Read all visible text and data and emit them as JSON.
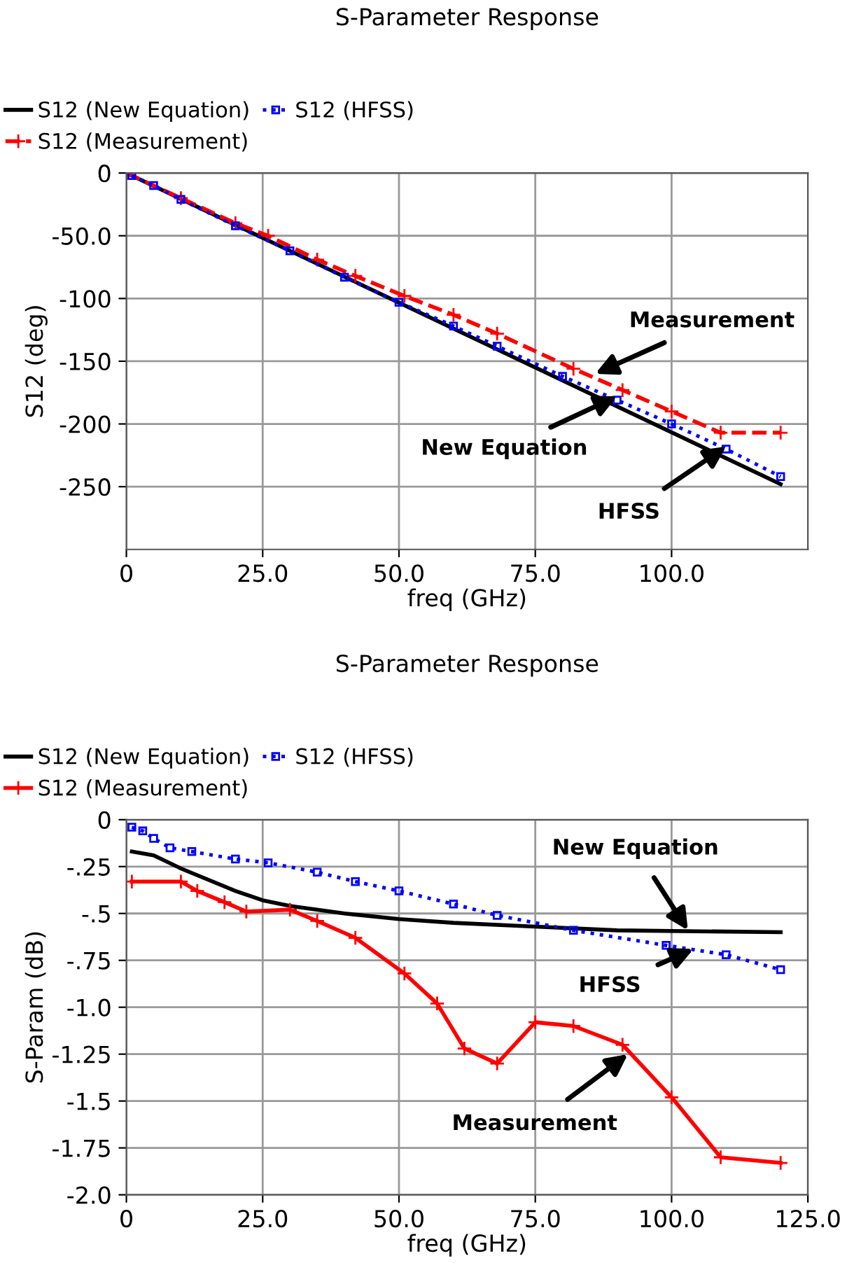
{
  "chart_data": [
    {
      "type": "line",
      "title": "S-Parameter Response",
      "xlabel": "freq (GHz)",
      "ylabel": "S12 (deg)",
      "xlim": [
        0,
        125
      ],
      "xticks": [
        {
          "value": 0,
          "label": "0"
        },
        {
          "value": 25,
          "label": "25.0"
        },
        {
          "value": 50,
          "label": "50.0"
        },
        {
          "value": 75,
          "label": "75.0"
        },
        {
          "value": 100,
          "label": "100.0"
        }
      ],
      "ylim": [
        -300,
        0
      ],
      "yticks": [
        {
          "value": 0,
          "label": "0"
        },
        {
          "value": -50,
          "label": "-50.0"
        },
        {
          "value": -100,
          "label": "-100"
        },
        {
          "value": -150,
          "label": "-150"
        },
        {
          "value": -200,
          "label": "-200"
        },
        {
          "value": -250,
          "label": "-250"
        }
      ],
      "grid": true,
      "legend": "top",
      "series": [
        {
          "name": "S12 (New Equation)",
          "color": "#000000",
          "marker": "none",
          "line_style": "solid",
          "x": [
            0,
            120
          ],
          "values": [
            0,
            -248
          ]
        },
        {
          "name": "S12 (Measurement)",
          "color": "#ff0000",
          "marker": "cross",
          "line_style": "dashed",
          "x": [
            0,
            10,
            20,
            26,
            35,
            42,
            51,
            60,
            68,
            82,
            91,
            100,
            109,
            120
          ],
          "values": [
            0,
            -20,
            -40,
            -50,
            -69,
            -82,
            -98,
            -113,
            -128,
            -156,
            -173,
            -190,
            -207,
            -207
          ]
        },
        {
          "name": "S12 (HFSS)",
          "color": "#0000ff",
          "marker": "square",
          "line_style": "dotted",
          "x": [
            1,
            5,
            10,
            20,
            30,
            40,
            50,
            60,
            68,
            80,
            90,
            100,
            110,
            120
          ],
          "values": [
            -2,
            -10,
            -21,
            -42,
            -62,
            -83,
            -103,
            -122,
            -138,
            -162,
            -181,
            -200,
            -220,
            -242
          ]
        }
      ],
      "annotations": [
        {
          "text": "Measurement",
          "x": 86,
          "y": -160
        },
        {
          "text": "New Equation",
          "x": 90,
          "y": -178
        },
        {
          "text": "HFSS",
          "x": 110,
          "y": -218
        }
      ]
    },
    {
      "type": "line",
      "title": "S-Parameter Response",
      "xlabel": "freq (GHz)",
      "ylabel": "S-Param (dB)",
      "xlim": [
        0,
        125
      ],
      "xticks": [
        {
          "value": 0,
          "label": "0"
        },
        {
          "value": 25,
          "label": "25.0"
        },
        {
          "value": 50,
          "label": "50.0"
        },
        {
          "value": 75,
          "label": "75.0"
        },
        {
          "value": 100,
          "label": "100.0"
        },
        {
          "value": 125,
          "label": "125.0"
        }
      ],
      "ylim": [
        -2.0,
        0
      ],
      "yticks": [
        {
          "value": 0,
          "label": "0"
        },
        {
          "value": -0.25,
          "label": "-.25"
        },
        {
          "value": -0.5,
          "label": "-.5"
        },
        {
          "value": -0.75,
          "label": "-.75"
        },
        {
          "value": -1.0,
          "label": "-1.0"
        },
        {
          "value": -1.25,
          "label": "-1.25"
        },
        {
          "value": -1.5,
          "label": "-1.5"
        },
        {
          "value": -1.75,
          "label": "-1.75"
        },
        {
          "value": -2.0,
          "label": "-2.0"
        }
      ],
      "grid": true,
      "legend": "top",
      "series": [
        {
          "name": "S12 (New Equation)",
          "color": "#000000",
          "marker": "none",
          "line_style": "solid",
          "x": [
            1,
            5,
            10,
            20,
            25,
            30,
            40,
            50,
            60,
            75,
            90,
            120
          ],
          "values": [
            -0.17,
            -0.19,
            -0.26,
            -0.38,
            -0.43,
            -0.46,
            -0.5,
            -0.53,
            -0.55,
            -0.57,
            -0.59,
            -0.6
          ]
        },
        {
          "name": "S12 (Measurement)",
          "color": "#ff0000",
          "marker": "cross",
          "line_style": "solid",
          "x": [
            1,
            10,
            13,
            18,
            22,
            30,
            35,
            42,
            51,
            57,
            62,
            68,
            75,
            82,
            91,
            100,
            109,
            120
          ],
          "values": [
            -0.33,
            -0.33,
            -0.38,
            -0.44,
            -0.49,
            -0.48,
            -0.54,
            -0.63,
            -0.82,
            -0.98,
            -1.22,
            -1.3,
            -1.08,
            -1.1,
            -1.2,
            -1.48,
            -1.8,
            -1.83
          ]
        },
        {
          "name": "S12 (HFSS)",
          "color": "#0000ff",
          "marker": "square",
          "line_style": "dotted",
          "x": [
            1,
            3,
            5,
            8,
            12,
            20,
            26,
            35,
            42,
            50,
            60,
            68,
            82,
            99,
            110,
            120
          ],
          "values": [
            -0.04,
            -0.06,
            -0.1,
            -0.15,
            -0.17,
            -0.21,
            -0.23,
            -0.28,
            -0.33,
            -0.38,
            -0.45,
            -0.51,
            -0.59,
            -0.67,
            -0.72,
            -0.8
          ]
        }
      ],
      "annotations": [
        {
          "text": "New Equation",
          "x": 103,
          "y": -0.59
        },
        {
          "text": "HFSS",
          "x": 104,
          "y": -0.69
        },
        {
          "text": "Measurement",
          "x": 92,
          "y": -1.25
        }
      ]
    }
  ]
}
